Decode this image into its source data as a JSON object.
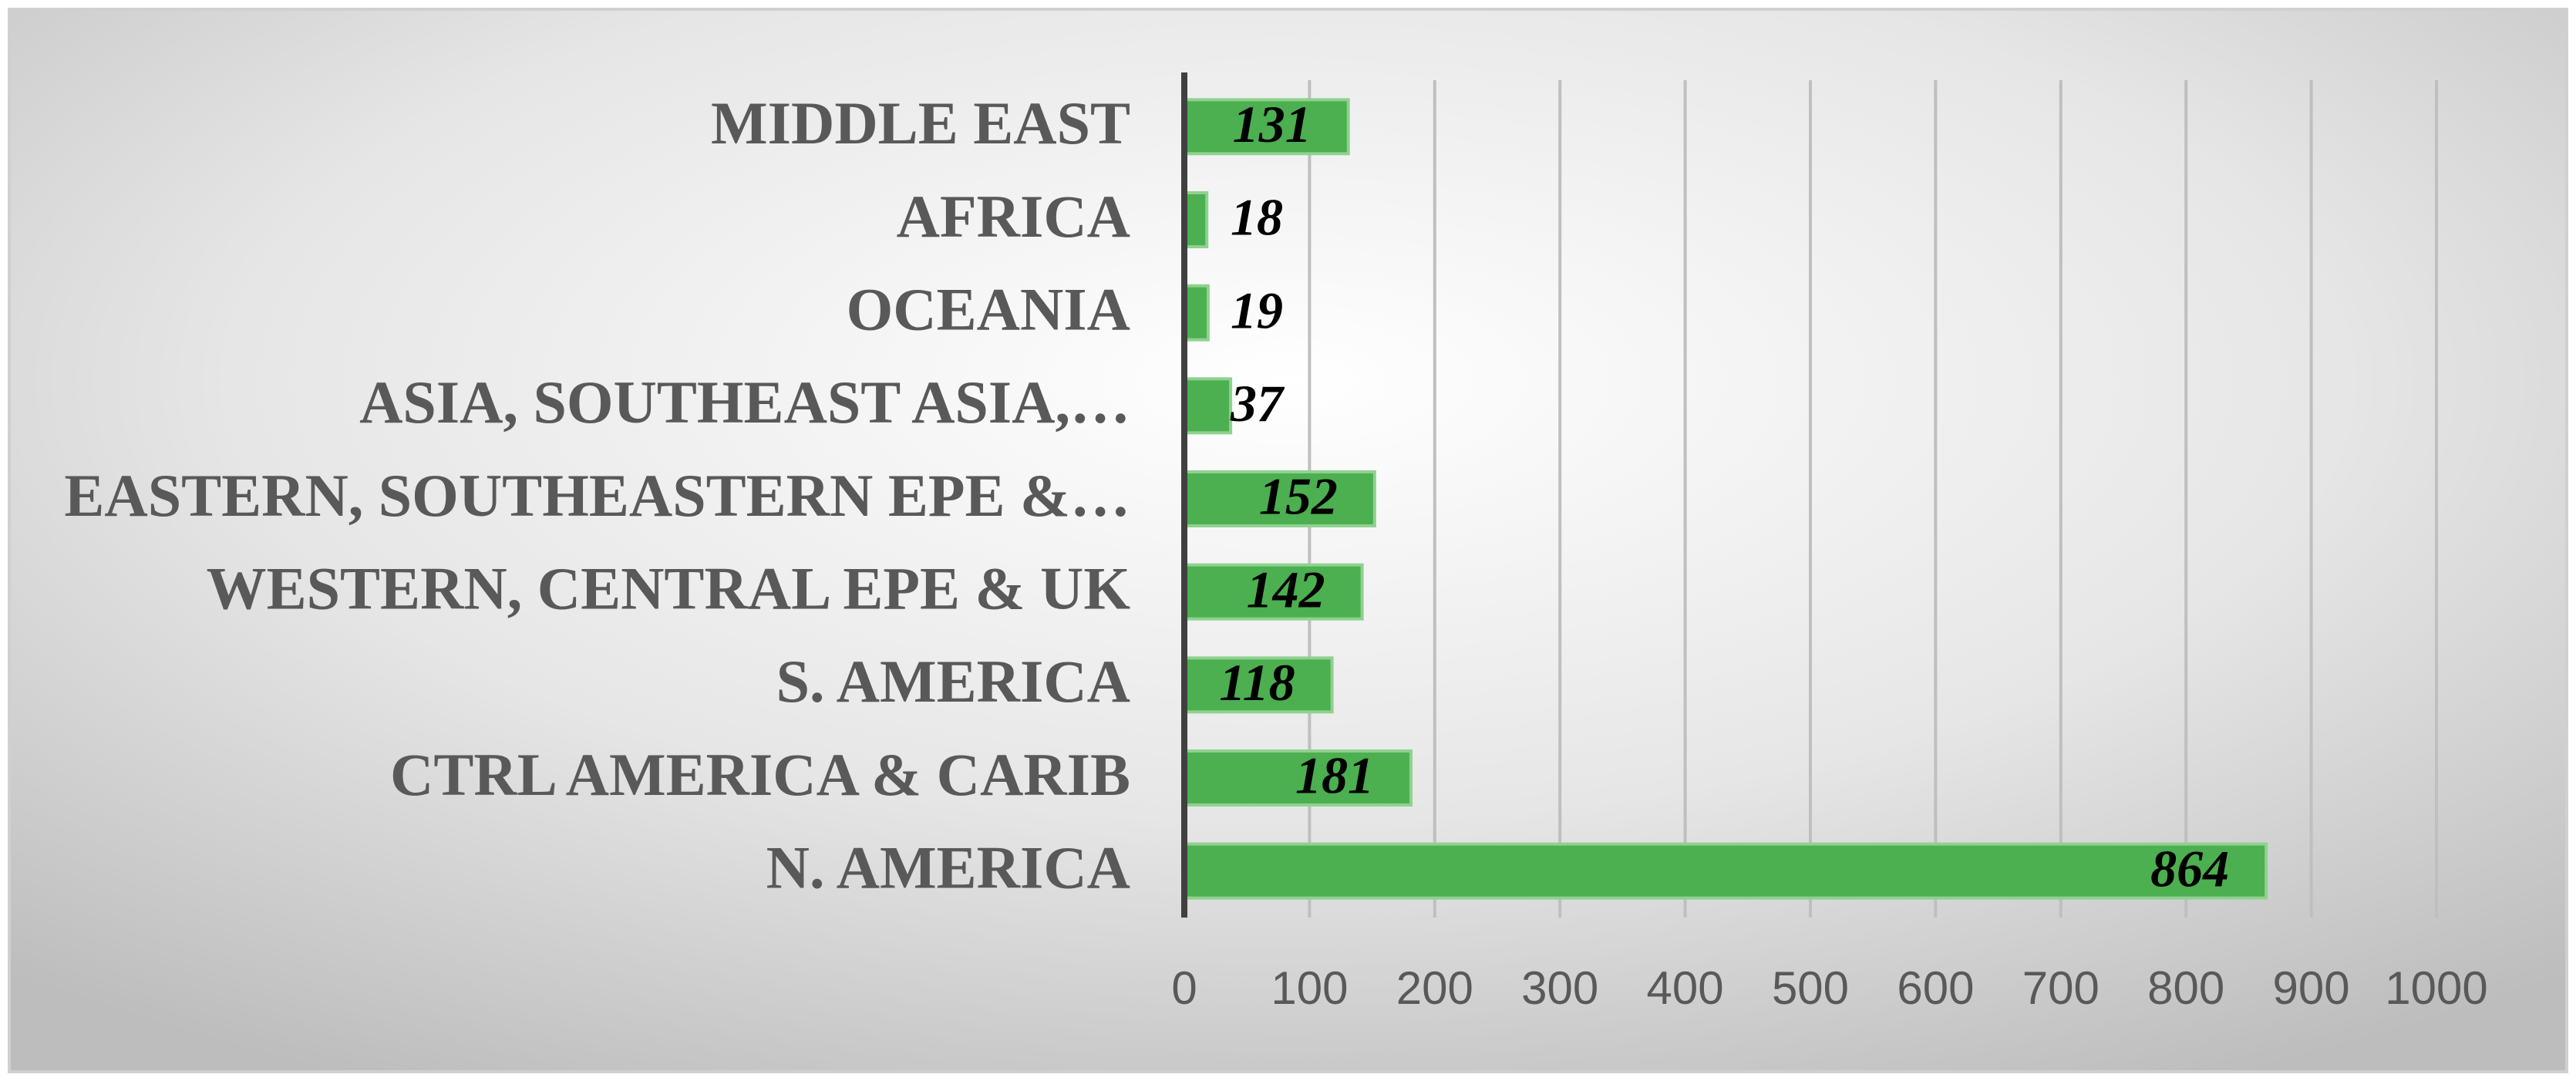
{
  "chart_data": {
    "type": "bar",
    "orientation": "horizontal",
    "categories": [
      "MIDDLE EAST",
      "AFRICA",
      "OCEANIA",
      "ASIA, SOUTHEAST ASIA,…",
      "EASTERN, SOUTHEASTERN EPE &…",
      "WESTERN, CENTRAL EPE & UK",
      "S. AMERICA",
      "CTRL AMERICA & CARIB",
      "N. AMERICA"
    ],
    "values": [
      131,
      18,
      19,
      37,
      152,
      142,
      118,
      181,
      864
    ],
    "color": "#4caf50",
    "xlim": [
      0,
      1000
    ],
    "xticks": [
      0,
      100,
      200,
      300,
      400,
      500,
      600,
      700,
      800,
      900,
      1000
    ],
    "grid": true
  }
}
